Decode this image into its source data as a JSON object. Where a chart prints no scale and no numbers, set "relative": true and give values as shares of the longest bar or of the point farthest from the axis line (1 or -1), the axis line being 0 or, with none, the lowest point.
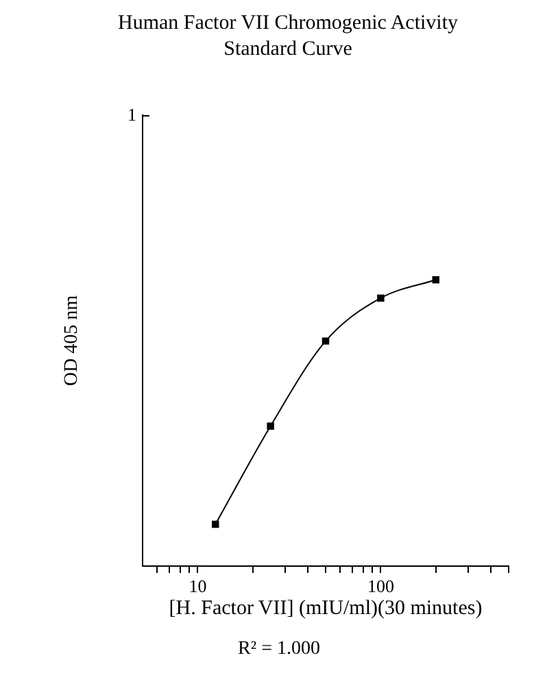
{
  "chart_data": {
    "type": "line",
    "title": "Human Factor VII Chromogenic Activity Standard Curve",
    "xlabel": "[H. Factor VII] (mIU/ml)(30 minutes)",
    "ylabel": "OD 405 nm",
    "x": [
      12.5,
      25,
      50,
      100,
      200
    ],
    "series": [
      {
        "color": "#000000",
        "values": [
          0.146,
          0.489,
          0.786,
          0.936,
          1
        ]
      }
    ],
    "relative": true,
    "log": "x",
    "xlim": [
      5,
      500
    ],
    "xticks": [
      {
        "value": 6,
        "label": null
      },
      {
        "value": 7,
        "label": null
      },
      {
        "value": 8,
        "label": null
      },
      {
        "value": 9,
        "label": null
      },
      10,
      {
        "value": 20,
        "label": null
      },
      {
        "value": 30,
        "label": null
      },
      {
        "value": 40,
        "label": null
      },
      {
        "value": 50,
        "label": null
      },
      {
        "value": 60,
        "label": null
      },
      {
        "value": 70,
        "label": null
      },
      {
        "value": 80,
        "label": null
      },
      {
        "value": 90,
        "label": null
      },
      100,
      {
        "value": 200,
        "label": null
      },
      {
        "value": 300,
        "label": null
      },
      {
        "value": 400,
        "label": null
      },
      {
        "value": 500,
        "label": null
      }
    ],
    "annotations": [
      "1",
      "R² = 1.000"
    ],
    "marker": "square",
    "line_style": "solid",
    "legend": false
  }
}
